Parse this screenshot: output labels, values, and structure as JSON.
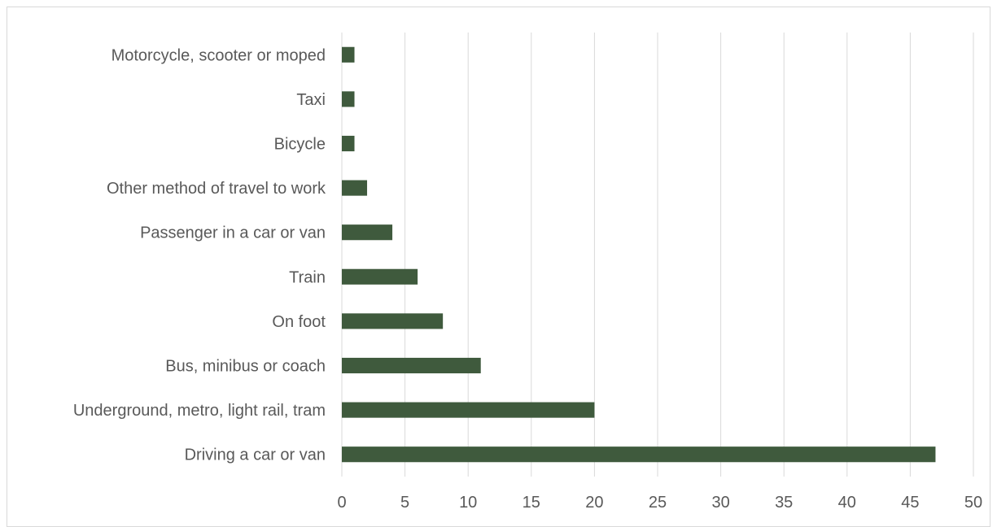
{
  "chart_data": {
    "type": "bar",
    "orientation": "horizontal",
    "title": "",
    "xlabel": "",
    "ylabel": "",
    "categories": [
      "Driving a car or van",
      "Underground, metro, light rail, tram",
      "Bus, minibus or coach",
      "On foot",
      "Train",
      "Passenger in a car or van",
      "Other method of travel to work",
      "Bicycle",
      "Taxi",
      "Motorcycle, scooter or moped"
    ],
    "values": [
      47,
      20,
      11,
      8,
      6,
      4,
      2,
      1,
      1,
      1
    ],
    "xlim": [
      0,
      50
    ],
    "xticks": [
      0,
      5,
      10,
      15,
      20,
      25,
      30,
      35,
      40,
      45,
      50
    ],
    "grid": "vertical",
    "legend": "none",
    "bar_color": "#3f5a3d",
    "grid_color": "#d9d9d9",
    "text_color": "#595959"
  }
}
